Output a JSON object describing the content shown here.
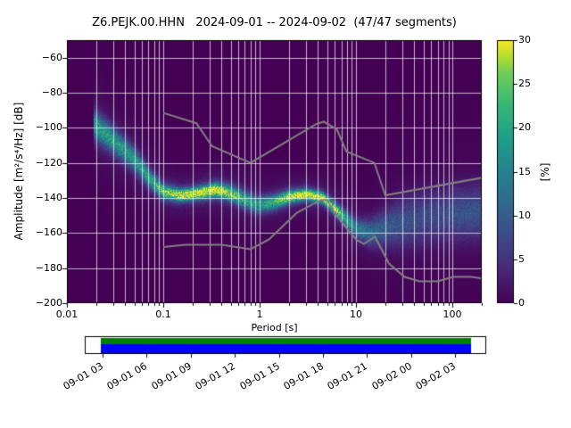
{
  "title": "Z6.PEJK.00.HHN   2024-09-01 -- 2024-09-02  (47/47 segments)",
  "station": "Z6.PEJK.00.HHN",
  "date_range": "2024-09-01 -- 2024-09-02",
  "segments": "47/47 segments",
  "axes": {
    "xlabel": "Period [s]",
    "ylabel": "Amplitude [m²/s⁴/Hz] [dB]",
    "xtick_labels": [
      "0.01",
      "0.1",
      "1",
      "10",
      "100"
    ],
    "ytick_labels": [
      "−60",
      "−80",
      "−100",
      "−120",
      "−140",
      "−160",
      "−180",
      "−200"
    ]
  },
  "colorbar": {
    "label": "[%]",
    "tick_labels": [
      "0",
      "5",
      "10",
      "15",
      "20",
      "25",
      "30"
    ],
    "min": 0,
    "max": 30,
    "colormap": "viridis",
    "viridis_stops": [
      [
        0.0,
        "#440154"
      ],
      [
        0.125,
        "#482878"
      ],
      [
        0.25,
        "#3e4989"
      ],
      [
        0.375,
        "#31688e"
      ],
      [
        0.5,
        "#26828e"
      ],
      [
        0.625,
        "#1f9e89"
      ],
      [
        0.75,
        "#35b779"
      ],
      [
        0.875,
        "#6ece58"
      ],
      [
        0.9375,
        "#b5de2b"
      ],
      [
        1.0,
        "#fde725"
      ]
    ]
  },
  "timeline": {
    "tick_labels": [
      "09-01 03",
      "09-01 06",
      "09-01 09",
      "09-01 12",
      "09-01 15",
      "09-01 18",
      "09-01 21",
      "09-02 00",
      "09-02 03"
    ],
    "data_color_green": "#008000",
    "data_color_blue": "#0000ff"
  },
  "chart_data": {
    "type": "heatmap",
    "title": "Z6.PEJK.00.HHN   2024-09-01 -- 2024-09-02  (47/47 segments)",
    "xlabel": "Period [s]",
    "ylabel": "Amplitude [m²/s⁴/Hz] [dB]",
    "x_log_scale": true,
    "xlim_period_s": [
      0.01,
      200
    ],
    "ylim_db": [
      -200,
      -50
    ],
    "grid": true,
    "colorbar_label": "[%]",
    "colorbar_range": [
      0,
      30
    ],
    "psd_distribution": [
      {
        "period_s": 0.019,
        "db_mode": -98,
        "db_sigma": 5.5,
        "peak_percent": 17
      },
      {
        "period_s": 0.03,
        "db_mode": -107,
        "db_sigma": 5.0,
        "peak_percent": 17
      },
      {
        "period_s": 0.05,
        "db_mode": -118,
        "db_sigma": 4.5,
        "peak_percent": 16
      },
      {
        "period_s": 0.075,
        "db_mode": -130,
        "db_sigma": 3.5,
        "peak_percent": 18
      },
      {
        "period_s": 0.1,
        "db_mode": -136.5,
        "db_sigma": 3.0,
        "peak_percent": 22
      },
      {
        "period_s": 0.15,
        "db_mode": -138.5,
        "db_sigma": 2.5,
        "peak_percent": 27
      },
      {
        "period_s": 0.22,
        "db_mode": -137.5,
        "db_sigma": 2.5,
        "peak_percent": 29
      },
      {
        "period_s": 0.35,
        "db_mode": -135.5,
        "db_sigma": 2.8,
        "peak_percent": 29
      },
      {
        "period_s": 0.5,
        "db_mode": -137.5,
        "db_sigma": 3.0,
        "peak_percent": 24
      },
      {
        "period_s": 0.7,
        "db_mode": -141,
        "db_sigma": 3.2,
        "peak_percent": 19
      },
      {
        "period_s": 0.95,
        "db_mode": -144,
        "db_sigma": 3.2,
        "peak_percent": 17
      },
      {
        "period_s": 1.4,
        "db_mode": -142.5,
        "db_sigma": 3.0,
        "peak_percent": 19
      },
      {
        "period_s": 2.0,
        "db_mode": -139.5,
        "db_sigma": 2.5,
        "peak_percent": 27
      },
      {
        "period_s": 3.0,
        "db_mode": -138,
        "db_sigma": 2.2,
        "peak_percent": 30
      },
      {
        "period_s": 4.5,
        "db_mode": -140,
        "db_sigma": 2.2,
        "peak_percent": 28
      },
      {
        "period_s": 6.0,
        "db_mode": -146,
        "db_sigma": 2.4,
        "peak_percent": 24
      },
      {
        "period_s": 8.0,
        "db_mode": -152.5,
        "db_sigma": 3.0,
        "peak_percent": 18
      },
      {
        "period_s": 10,
        "db_mode": -157.5,
        "db_sigma": 3.5,
        "peak_percent": 14
      },
      {
        "period_s": 14,
        "db_mode": -160,
        "db_sigma": 5.0,
        "peak_percent": 11
      },
      {
        "period_s": 20,
        "db_mode": -157,
        "db_sigma": 7.0,
        "peak_percent": 9
      },
      {
        "period_s": 30,
        "db_mode": -154,
        "db_sigma": 9.0,
        "peak_percent": 8
      },
      {
        "period_s": 50,
        "db_mode": -151.5,
        "db_sigma": 10.0,
        "peak_percent": 7
      },
      {
        "period_s": 80,
        "db_mode": -150,
        "db_sigma": 10.0,
        "peak_percent": 7
      },
      {
        "period_s": 120,
        "db_mode": -149,
        "db_sigma": 10.0,
        "peak_percent": 8
      },
      {
        "period_s": 200,
        "db_mode": -148,
        "db_sigma": 10.0,
        "peak_percent": 8
      }
    ],
    "noise_models": {
      "color": "#808080",
      "nhnm": [
        [
          0.1,
          -91.5
        ],
        [
          0.22,
          -97.4
        ],
        [
          0.32,
          -110.5
        ],
        [
          0.8,
          -120.0
        ],
        [
          3.8,
          -98.0
        ],
        [
          4.6,
          -96.5
        ],
        [
          6.3,
          -101.0
        ],
        [
          7.9,
          -113.5
        ],
        [
          15.4,
          -120.0
        ],
        [
          20.0,
          -138.5
        ],
        [
          354.8,
          -126.0
        ]
      ],
      "nlnm": [
        [
          0.1,
          -168.0
        ],
        [
          0.17,
          -166.7
        ],
        [
          0.4,
          -166.7
        ],
        [
          0.8,
          -169.2
        ],
        [
          1.24,
          -163.7
        ],
        [
          2.4,
          -148.6
        ],
        [
          4.3,
          -141.1
        ],
        [
          5.0,
          -141.1
        ],
        [
          6.0,
          -149.0
        ],
        [
          10.0,
          -163.8
        ],
        [
          12.0,
          -166.2
        ],
        [
          15.6,
          -162.1
        ],
        [
          21.9,
          -177.5
        ],
        [
          31.6,
          -185.0
        ],
        [
          45.0,
          -187.5
        ],
        [
          70.0,
          -187.5
        ],
        [
          101.0,
          -185.0
        ],
        [
          154.0,
          -185.0
        ],
        [
          328.0,
          -187.5
        ]
      ]
    }
  }
}
